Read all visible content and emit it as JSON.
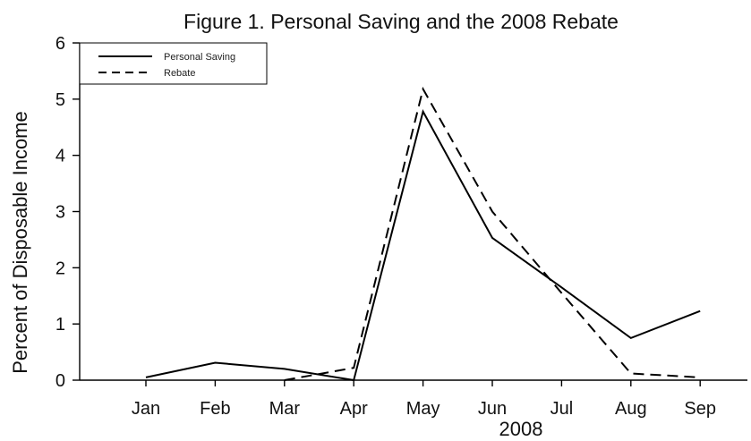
{
  "chart_data": {
    "type": "line",
    "title": "Figure 1.  Personal Saving and the 2008 Rebate",
    "xlabel": "2008",
    "ylabel": "Percent of Disposable Income",
    "categories": [
      "Jan",
      "Feb",
      "Mar",
      "Apr",
      "May",
      "Jun",
      "Jul",
      "Aug",
      "Sep"
    ],
    "ylim": [
      0,
      6
    ],
    "yticks": [
      "0",
      "1",
      "2",
      "3",
      "4",
      "5",
      "6"
    ],
    "grid": false,
    "legend_position": "top-left",
    "series": [
      {
        "name": "Personal Saving",
        "style": "solid",
        "color": "#000000",
        "values": [
          0.05,
          0.31,
          0.2,
          0.0,
          4.78,
          2.53,
          1.65,
          0.75,
          1.23
        ]
      },
      {
        "name": "Rebate",
        "style": "dashed",
        "color": "#000000",
        "values": [
          null,
          null,
          0.0,
          0.22,
          5.18,
          3.0,
          1.55,
          0.12,
          0.05
        ]
      }
    ]
  }
}
